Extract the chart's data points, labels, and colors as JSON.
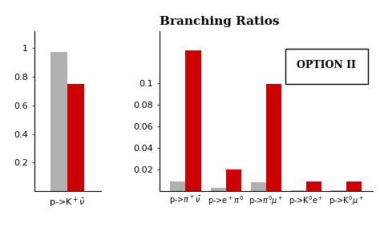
{
  "title": "Branching Ratios",
  "title_fontsize": 11,
  "background_color": "#ffffff",
  "left_panel": {
    "categories": [
      "p->K$^+$$\\bar{\\nu}$"
    ],
    "gray_values": [
      0.975
    ],
    "red_values": [
      0.75
    ],
    "ylim": [
      0,
      1.12
    ],
    "yticks": [
      0.2,
      0.4,
      0.6,
      0.8,
      1.0
    ],
    "ytick_labels": [
      "0.2",
      "0.4",
      "0.6",
      "0.8",
      "1"
    ]
  },
  "right_panel": {
    "categories": [
      "p->$\\pi^+$$\\bar{\\nu}$",
      "p->e$^+$$\\pi^0$",
      "p->$\\pi^0$$\\mu^+$",
      "p->K$^0$e$^+$",
      "p->K$^0$$\\mu^+$"
    ],
    "gray_values": [
      0.009,
      0.003,
      0.008,
      0.001,
      0.001
    ],
    "red_values": [
      0.13,
      0.02,
      0.099,
      0.009,
      0.009
    ],
    "ylim": [
      0,
      0.148
    ],
    "yticks": [
      0.02,
      0.04,
      0.06,
      0.08,
      0.1
    ],
    "ytick_labels": [
      "0.02",
      "0.04",
      "0.06",
      "0.08",
      "0.1"
    ]
  },
  "gray_color": "#b0b0b0",
  "red_color": "#cc0000",
  "bar_width": 0.38,
  "legend_text": "OPTION II",
  "legend_fontsize": 9
}
